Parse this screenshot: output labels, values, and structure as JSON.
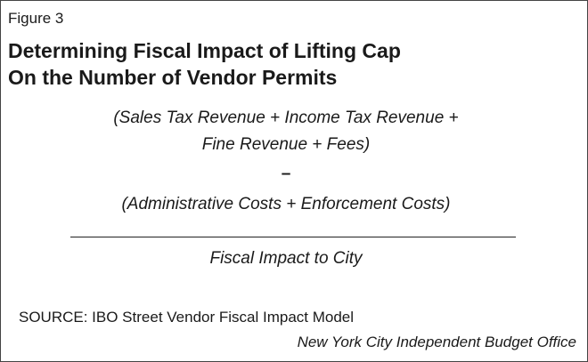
{
  "figure_label": "Figure 3",
  "title": [
    "Determining Fiscal Impact of Lifting Cap",
    "On the Number of Vendor Permits"
  ],
  "formula": {
    "numerator": [
      "(Sales Tax Revenue + Income Tax Revenue +",
      "Fine Revenue + Fees)"
    ],
    "operator": "–",
    "subtrahend": "(Administrative Costs + Enforcement Costs)",
    "result": "Fiscal Impact to City"
  },
  "source": "SOURCE: IBO Street Vendor Fiscal Impact Model",
  "credit": "New York City Independent Budget Office"
}
